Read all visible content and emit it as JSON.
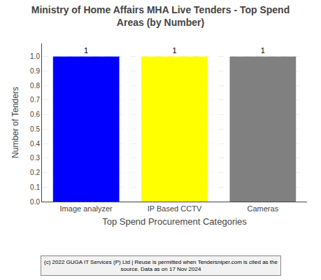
{
  "chart_data": {
    "type": "bar",
    "title": "Ministry of Home Affairs MHA Live Tenders - Top Spend\nAreas (by Number)",
    "categories": [
      "Image analyzer",
      "IP Based CCTV",
      "Cameras"
    ],
    "values": [
      1,
      1,
      1
    ],
    "colors": [
      "#0000ff",
      "#ffff00",
      "#808080"
    ],
    "ylabel": "Number of Tenders",
    "xlabel": "Top Spend Procurement Categories",
    "ylim": [
      0,
      1.09
    ],
    "yticks": [
      {
        "value": 0,
        "label": "0.0"
      },
      0.1,
      0.2,
      0.3,
      0.4,
      0.5,
      0.6,
      0.7,
      0.8,
      0.9,
      {
        "value": 1,
        "label": "1.0"
      }
    ],
    "grid": true,
    "data_labels": true,
    "annotations": [
      "(c) 2022 GUGA IT Services (P) Ltd | Reuse is permitted when Tendersniper.com is cited as the\nsource. Data as on 17 Nov 2024"
    ]
  }
}
